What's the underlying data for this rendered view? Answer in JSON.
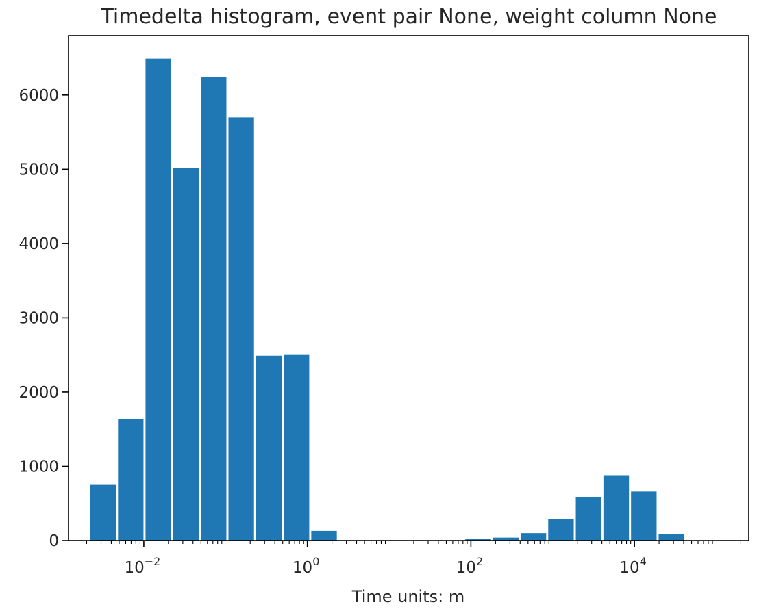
{
  "chart_data": {
    "type": "bar",
    "title": "Timedelta histogram, event pair None, weight column None",
    "xlabel": "Time units: m",
    "ylabel": "",
    "xscale": "log",
    "xlim": [
      0.0012,
      250000
    ],
    "ylim": [
      0,
      6800
    ],
    "grid": false,
    "legend": "none",
    "bar_color": "#1f77b4",
    "x_ticks": [
      {
        "value": 0.01,
        "base": "10",
        "exp": "−2"
      },
      {
        "value": 1,
        "base": "10",
        "exp": "0"
      },
      {
        "value": 100,
        "base": "10",
        "exp": "2"
      },
      {
        "value": 10000,
        "base": "10",
        "exp": "4"
      }
    ],
    "y_ticks": [
      0,
      1000,
      2000,
      3000,
      4000,
      5000,
      6000
    ],
    "bins": [
      {
        "x0": 0.00215,
        "x1": 0.0047,
        "count": 750
      },
      {
        "x0": 0.0047,
        "x1": 0.0102,
        "count": 1640
      },
      {
        "x0": 0.0102,
        "x1": 0.0222,
        "count": 6490
      },
      {
        "x0": 0.0222,
        "x1": 0.0484,
        "count": 5020
      },
      {
        "x0": 0.0484,
        "x1": 0.1053,
        "count": 6240
      },
      {
        "x0": 0.1053,
        "x1": 0.229,
        "count": 5700
      },
      {
        "x0": 0.229,
        "x1": 0.4985,
        "count": 2490
      },
      {
        "x0": 0.4985,
        "x1": 1.085,
        "count": 2500
      },
      {
        "x0": 1.085,
        "x1": 2.36,
        "count": 130
      },
      {
        "x0": 83,
        "x1": 181,
        "count": 20
      },
      {
        "x0": 181,
        "x1": 394,
        "count": 40
      },
      {
        "x0": 394,
        "x1": 857,
        "count": 100
      },
      {
        "x0": 857,
        "x1": 1864,
        "count": 290
      },
      {
        "x0": 1864,
        "x1": 4057,
        "count": 590
      },
      {
        "x0": 4057,
        "x1": 8829,
        "count": 880
      },
      {
        "x0": 8829,
        "x1": 19210,
        "count": 660
      },
      {
        "x0": 19210,
        "x1": 41800,
        "count": 90
      }
    ]
  }
}
